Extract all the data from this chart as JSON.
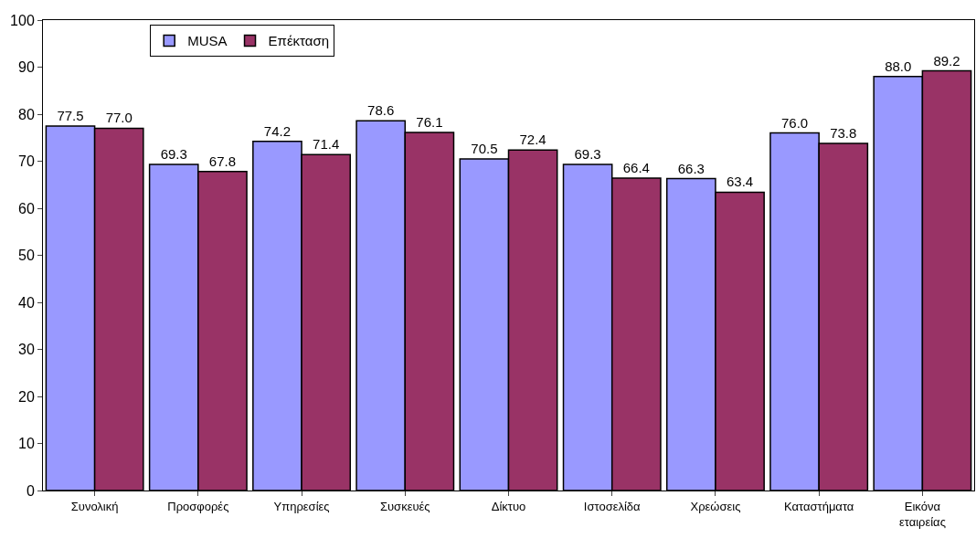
{
  "chart_data": {
    "type": "bar",
    "categories": [
      "Συνολική",
      "Προσφορές",
      "Υπηρεσίες",
      "Συσκευές",
      "Δίκτυο",
      "Ιστοσελίδα",
      "Χρεώσεις",
      "Καταστήματα",
      "Εικόνα εταιρείας"
    ],
    "series": [
      {
        "name": "MUSA",
        "color": "#9999ff",
        "values": [
          77.5,
          69.3,
          74.2,
          78.6,
          70.5,
          69.3,
          66.3,
          76.0,
          88.0
        ],
        "value_labels": [
          "77.5",
          "69.3",
          "74.2",
          "78.6",
          "70.5",
          "69.3",
          "66.3",
          "76.0",
          "88.0"
        ]
      },
      {
        "name": "Επέκταση",
        "color": "#993366",
        "values": [
          77.0,
          67.8,
          71.4,
          76.1,
          72.4,
          66.4,
          63.4,
          73.8,
          89.2
        ],
        "value_labels": [
          "77.0",
          "67.8",
          "71.4",
          "76.1",
          "72.4",
          "66.4",
          "63.4",
          "73.8",
          "89.2"
        ]
      }
    ],
    "ylim": [
      0,
      100
    ],
    "yticks": [
      0,
      10,
      20,
      30,
      40,
      50,
      60,
      70,
      80,
      90,
      100
    ],
    "grid": false,
    "legend": "top left"
  }
}
